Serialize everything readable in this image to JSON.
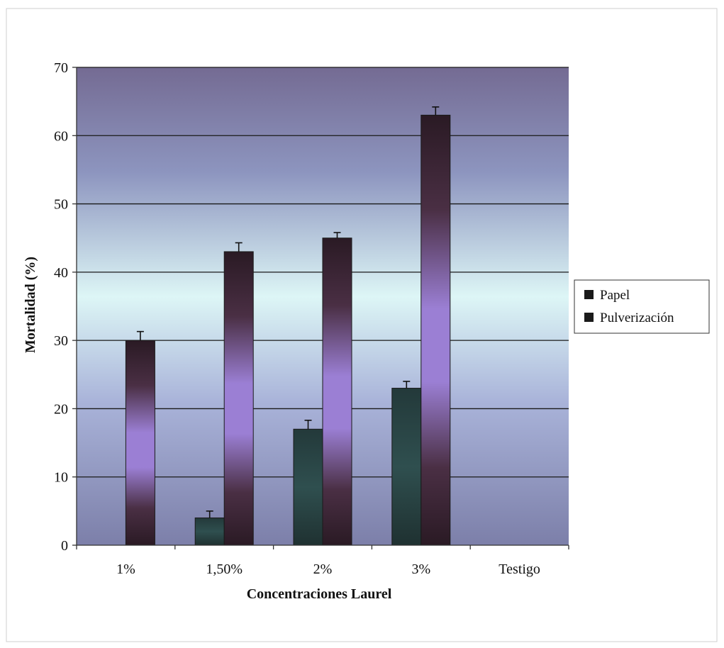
{
  "chart_data": {
    "type": "bar",
    "title": "",
    "xlabel": "Concentraciones Laurel",
    "ylabel": "Mortalidad (%)",
    "ylim": [
      0,
      70
    ],
    "yticks": [
      0,
      10,
      20,
      30,
      40,
      50,
      60,
      70
    ],
    "categories": [
      "1%",
      "1,50%",
      "2%",
      "3%",
      "Testigo"
    ],
    "series": [
      {
        "name": "Papel",
        "values": [
          0,
          4,
          17,
          23,
          0
        ],
        "errors": [
          0,
          1,
          1.3,
          1,
          0
        ],
        "color": "#2f4f4f"
      },
      {
        "name": "Pulverización",
        "values": [
          30,
          43,
          45,
          63,
          0
        ],
        "errors": [
          1.3,
          1.3,
          0.8,
          1.2,
          0
        ],
        "color": "#9b7fd4"
      }
    ],
    "grid": true,
    "legend_position": "right",
    "plot_background": "gradient"
  }
}
